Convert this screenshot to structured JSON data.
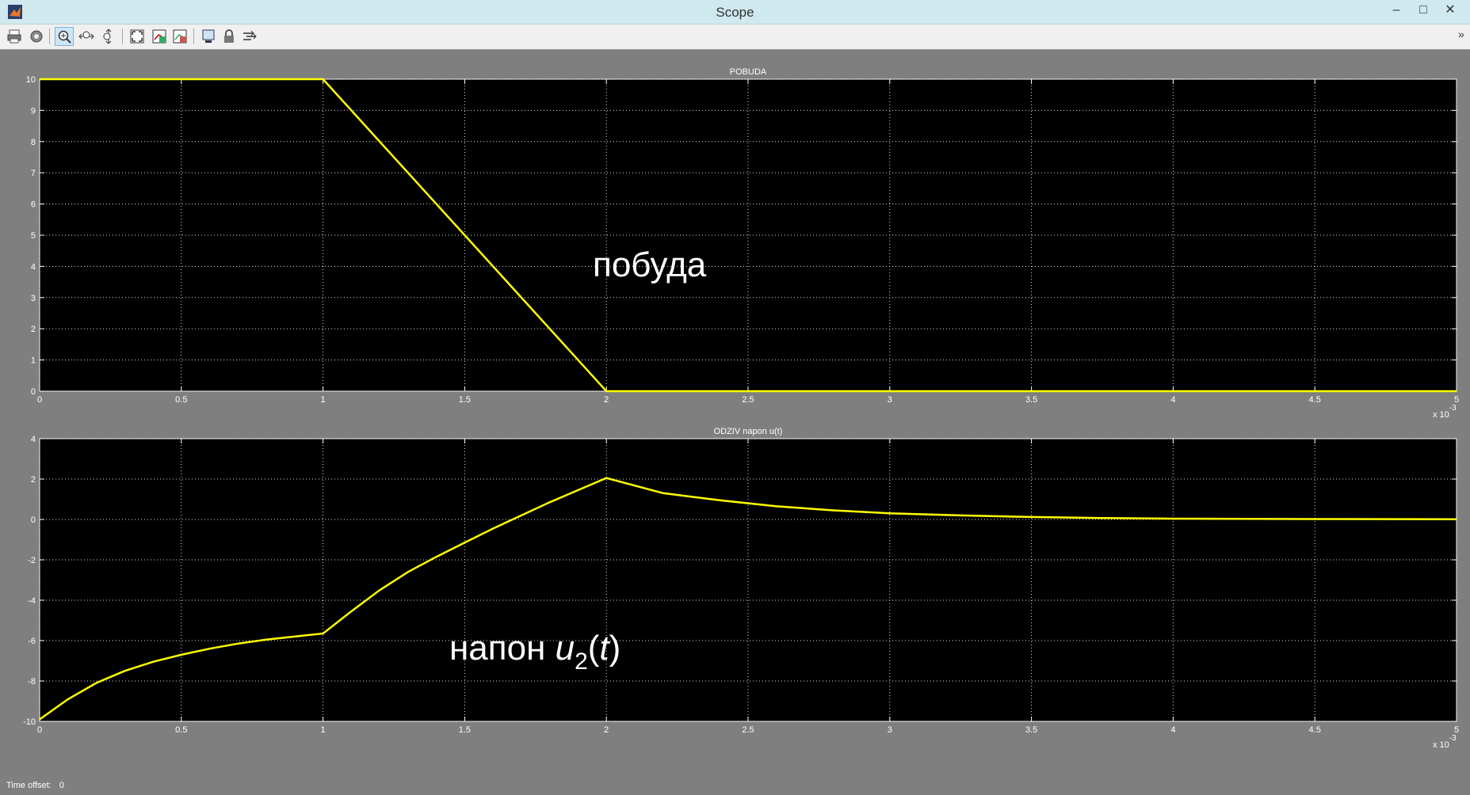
{
  "window": {
    "title": "Scope",
    "minimize": "–",
    "maximize": "□",
    "close": "✕"
  },
  "toolbar": {
    "icons": [
      "print-icon",
      "parameters-icon",
      "zoom-in-icon",
      "zoom-x-icon",
      "zoom-y-icon",
      "autoscale-icon",
      "save-axes-icon",
      "restore-axes-icon",
      "floating-scope-icon",
      "lock-axes-icon",
      "signal-selection-icon"
    ],
    "overflow": "»"
  },
  "status": {
    "time_offset_label": "Time offset:",
    "time_offset_value": "0"
  },
  "colors": {
    "trace": "#ffff00",
    "axes_bg": "#000000",
    "figure_bg": "#7f7f7f",
    "titlebar": "#cfe9ee"
  },
  "chart_data": [
    {
      "type": "line",
      "title": "POBUDA",
      "annotation": "побуда",
      "x_exponent": "x 10-3",
      "xlim": [
        0,
        5
      ],
      "ylim": [
        0,
        10
      ],
      "xticks": [
        "0",
        "0.5",
        "1",
        "1.5",
        "2",
        "2.5",
        "3",
        "3.5",
        "4",
        "4.5",
        "5"
      ],
      "yticks": [
        "0",
        "1",
        "2",
        "3",
        "4",
        "5",
        "6",
        "7",
        "8",
        "9",
        "10"
      ],
      "grid": true,
      "series": [
        {
          "color": "#ffff00",
          "x": [
            0,
            1,
            2,
            5
          ],
          "y": [
            10,
            10,
            0,
            0
          ]
        }
      ]
    },
    {
      "type": "line",
      "title": "ODZIV napon u(t)",
      "annotation": {
        "prefix": "напон ",
        "var": "u",
        "sub": "2",
        "open": "(",
        "arg": "t",
        "close": ")"
      },
      "x_exponent": "x 10-3",
      "xlim": [
        0,
        5
      ],
      "ylim": [
        -10,
        4
      ],
      "xticks": [
        "0",
        "0.5",
        "1",
        "1.5",
        "2",
        "2.5",
        "3",
        "3.5",
        "4",
        "4.5",
        "5"
      ],
      "yticks": [
        "-10",
        "-8",
        "-6",
        "-4",
        "-2",
        "0",
        "2",
        "4"
      ],
      "grid": true,
      "series": [
        {
          "color": "#ffff00",
          "x": [
            0,
            0.1,
            0.2,
            0.3,
            0.4,
            0.5,
            0.6,
            0.7,
            0.8,
            0.9,
            1.0,
            1.1,
            1.2,
            1.3,
            1.4,
            1.5,
            1.6,
            1.7,
            1.8,
            1.9,
            2.0,
            2.2,
            2.4,
            2.6,
            2.8,
            3.0,
            3.25,
            3.5,
            3.75,
            4.0,
            4.5,
            5.0
          ],
          "y": [
            -9.9,
            -8.9,
            -8.1,
            -7.5,
            -7.05,
            -6.7,
            -6.4,
            -6.15,
            -5.95,
            -5.8,
            -5.65,
            -4.55,
            -3.5,
            -2.6,
            -1.85,
            -1.15,
            -0.45,
            0.2,
            0.85,
            1.45,
            2.05,
            1.3,
            0.95,
            0.65,
            0.45,
            0.3,
            0.2,
            0.12,
            0.07,
            0.04,
            0.02,
            0.01
          ]
        }
      ]
    }
  ]
}
